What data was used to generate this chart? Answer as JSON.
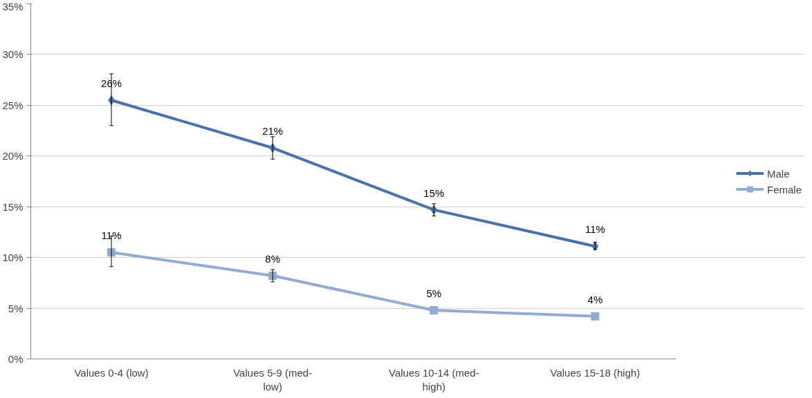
{
  "chart_data": {
    "type": "line",
    "categories": [
      "Values 0-4 (low)",
      "Values 5-9 (med-low)",
      "Values 10-14 (med-high)",
      "Values 15-18 (high)"
    ],
    "series": [
      {
        "name": "Male",
        "color": "#4a72a8",
        "marker": "diamond",
        "values": [
          25.5,
          20.8,
          14.7,
          11.1
        ],
        "errors": [
          [
            23.0,
            28.1
          ],
          [
            19.7,
            21.9
          ],
          [
            14.1,
            15.3
          ],
          [
            10.8,
            11.5
          ]
        ],
        "value_labels": [
          "26%",
          "21%",
          "15%",
          "11%"
        ]
      },
      {
        "name": "Female",
        "color": "#94abd0",
        "marker": "square",
        "values": [
          10.5,
          8.2,
          4.8,
          4.2
        ],
        "errors": [
          [
            9.1,
            12.1
          ],
          [
            7.6,
            8.8
          ],
          null,
          null
        ],
        "value_labels": [
          "11%",
          "8%",
          "5%",
          "4%"
        ]
      }
    ],
    "ylim": [
      0,
      35
    ],
    "yticks": [
      {
        "value": 0,
        "label": "0%"
      },
      {
        "value": 5,
        "label": "5%"
      },
      {
        "value": 10,
        "label": "10%"
      },
      {
        "value": 15,
        "label": "15%"
      },
      {
        "value": 20,
        "label": "20%"
      },
      {
        "value": 25,
        "label": "25%"
      },
      {
        "value": 30,
        "label": "30%"
      },
      {
        "value": 35,
        "label": "35%"
      }
    ],
    "grid": "y",
    "legend": "right",
    "line_style": "solid"
  }
}
